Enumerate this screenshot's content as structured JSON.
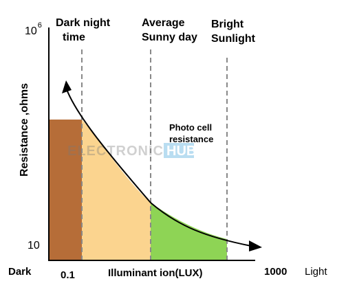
{
  "y_axis": {
    "label": "Resistance ,ohms",
    "top_tick_base": "10",
    "top_tick_exp": "6",
    "bottom_tick": "10"
  },
  "x_axis": {
    "left_end": "Dark",
    "tick_low": "0.1",
    "title": "Illuminant ion(LUX)",
    "tick_high": "1000",
    "right_end": "Light"
  },
  "regions": {
    "dark_night": {
      "line1": "Dark night",
      "line2": "time"
    },
    "average_sunny": {
      "line1": "Average",
      "line2": "Sunny day"
    },
    "bright_sunlight": {
      "line1": "Bright",
      "line2": "Sunlight"
    }
  },
  "curve": {
    "line1": "Photo cell",
    "line2": "resistance"
  },
  "watermark": "ELECTRONICS HUB",
  "colors": {
    "dark_band": "#b66d38",
    "mid_band": "#fbd48f",
    "bright_band": "#8ed455",
    "dashed": "#888888",
    "axis": "#000000"
  }
}
